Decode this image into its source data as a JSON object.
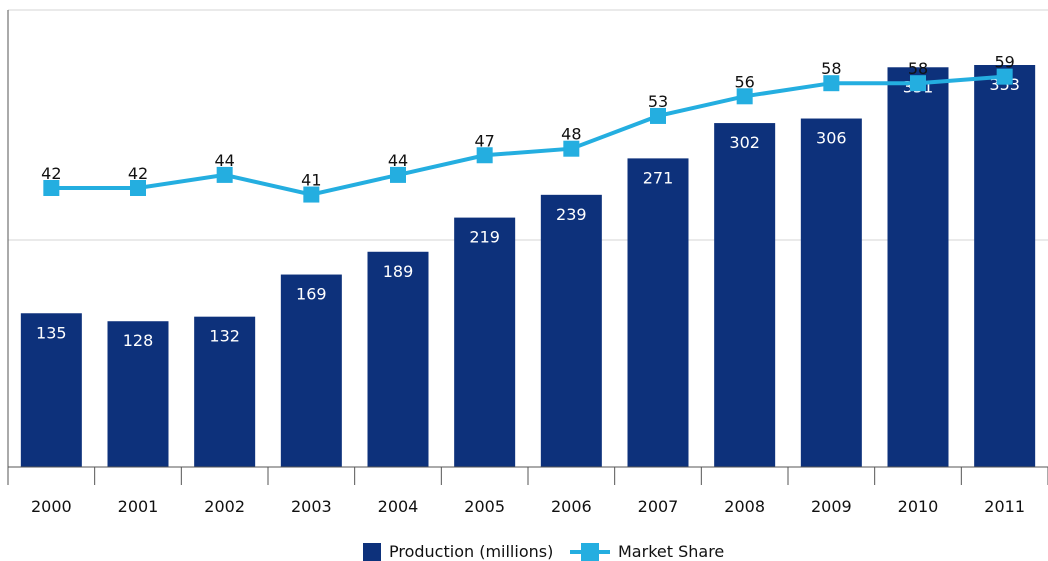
{
  "chart_data": {
    "type": "bar",
    "categories": [
      "2000",
      "2001",
      "2002",
      "2003",
      "2004",
      "2005",
      "2006",
      "2007",
      "2008",
      "2009",
      "2010",
      "2011"
    ],
    "series": [
      {
        "name": "Production (millions)",
        "type": "bar",
        "values": [
          135,
          128,
          132,
          169,
          189,
          219,
          239,
          271,
          302,
          306,
          351,
          353
        ]
      },
      {
        "name": "Market Share",
        "type": "line",
        "values": [
          42,
          42,
          44,
          41,
          44,
          47,
          48,
          53,
          56,
          58,
          58,
          59
        ]
      }
    ],
    "legend_position": "bottom",
    "grid": true,
    "colors": {
      "bar": "#0d317b",
      "line": "#24aee0",
      "grid": "#d6d6d6",
      "axis": "#555555"
    }
  }
}
